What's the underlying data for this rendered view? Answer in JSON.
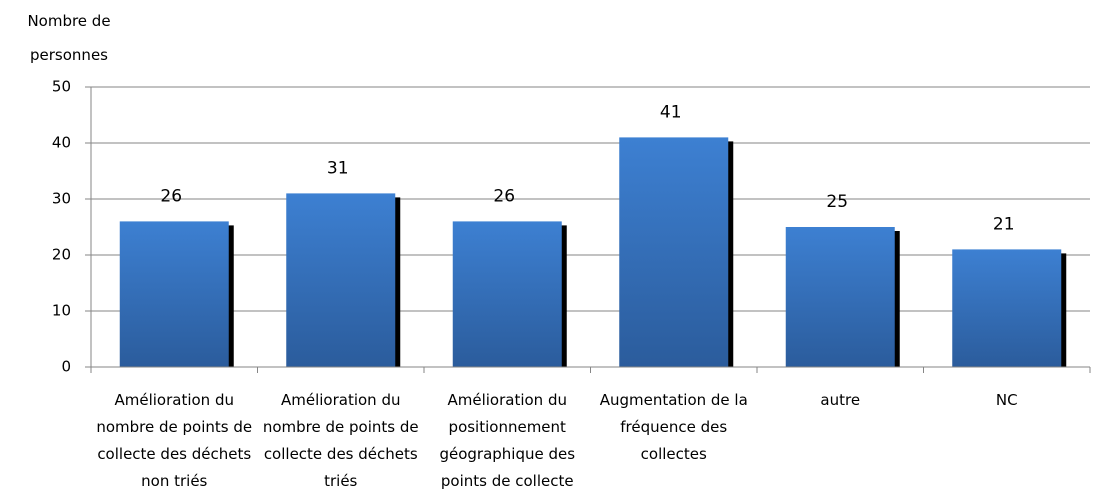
{
  "chart_data": {
    "type": "bar",
    "y_label": "Nombre de personnes",
    "categories": [
      "Amélioration du nombre de points de collecte des déchets non triés",
      "Amélioration du nombre de points de collecte des déchets triés",
      "Amélioration du positionnement géographique des points de collecte",
      "Augmentation de la fréquence des collectes",
      "autre",
      "NC"
    ],
    "values": [
      26,
      31,
      26,
      41,
      25,
      21
    ],
    "color": "#3a78c6",
    "ylim": [
      0,
      50
    ],
    "yticks": [
      0,
      10,
      20,
      30,
      40,
      50
    ],
    "grid": true
  }
}
